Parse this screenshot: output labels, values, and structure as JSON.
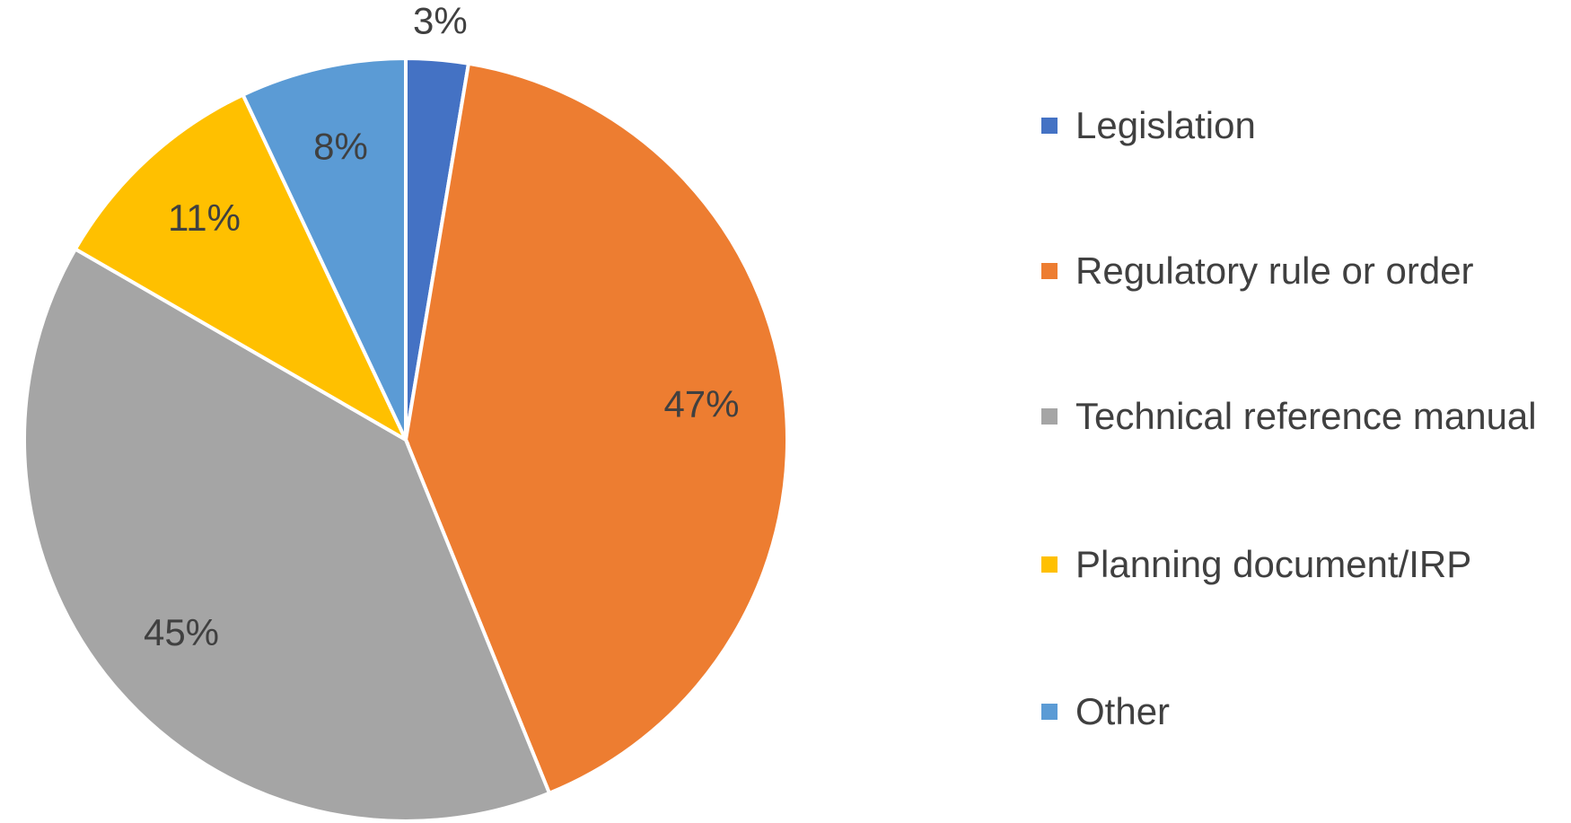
{
  "chart_data": {
    "type": "pie",
    "categories": [
      "Legislation",
      "Regulatory rule or order",
      "Technical reference manual",
      "Planning document/IRP",
      "Other"
    ],
    "values": [
      3,
      47,
      45,
      11,
      8
    ],
    "value_labels": [
      "3%",
      "47%",
      "45%",
      "11%",
      "8%"
    ],
    "colors": [
      "#4472c4",
      "#ed7d31",
      "#a5a5a5",
      "#ffc000",
      "#5b9bd5"
    ],
    "legend": "right"
  }
}
